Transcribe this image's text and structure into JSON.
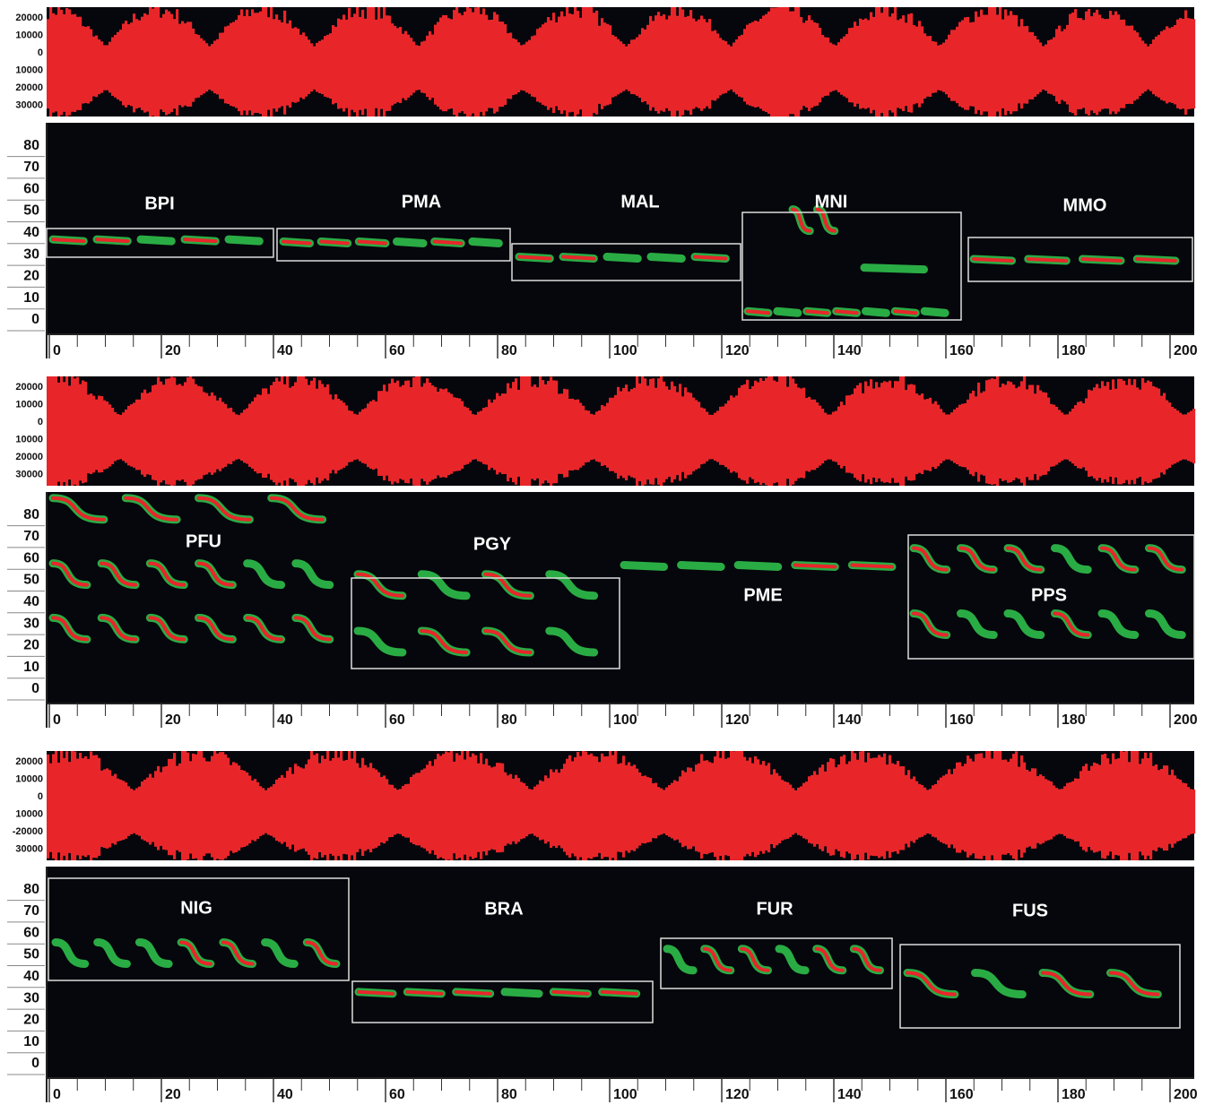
{
  "panels": [
    {
      "osc_ticks": [
        20000,
        10000,
        0,
        10000,
        20000,
        30000
      ],
      "freq_ticks": [
        80,
        70,
        60,
        50,
        40,
        30,
        20,
        10,
        0
      ],
      "time_ticks": [
        0,
        20,
        40,
        60,
        80,
        100,
        120,
        140,
        160,
        180,
        200
      ],
      "species": [
        "BPI",
        "PMA",
        "MAL",
        "MNI",
        "MMO"
      ]
    },
    {
      "osc_ticks": [
        20000,
        10000,
        0,
        10000,
        20000,
        30000
      ],
      "freq_ticks": [
        80,
        70,
        60,
        50,
        40,
        30,
        20,
        10,
        0
      ],
      "time_ticks": [
        0,
        20,
        40,
        60,
        80,
        100,
        120,
        140,
        160,
        180,
        200
      ],
      "species": [
        "PFU",
        "PGY",
        "PME",
        "PPS"
      ]
    },
    {
      "osc_ticks": [
        20000,
        10000,
        0,
        10000,
        -20000,
        30000
      ],
      "freq_ticks": [
        80,
        70,
        60,
        50,
        40,
        30,
        20,
        10,
        0
      ],
      "time_ticks": [
        0,
        20,
        40,
        60,
        80,
        100,
        120,
        140,
        160,
        180,
        200
      ],
      "species": [
        "NIG",
        "BRA",
        "FUR",
        "FUS"
      ]
    }
  ]
}
